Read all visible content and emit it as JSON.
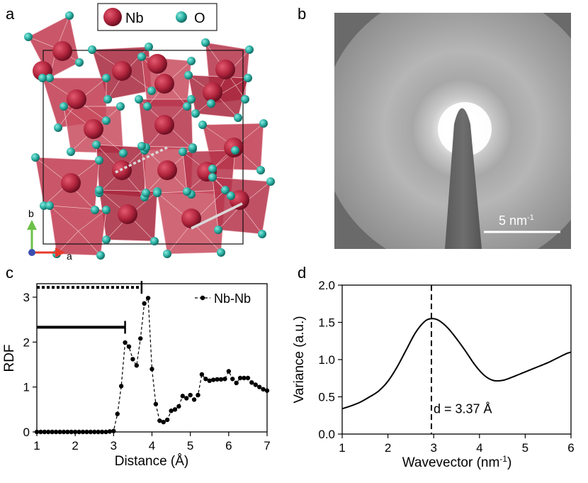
{
  "panels": {
    "a": {
      "letter": "a",
      "legend": [
        {
          "label": "Nb",
          "color": "#b3263e"
        },
        {
          "label": "O",
          "color": "#2fb5a8"
        }
      ],
      "axes": {
        "b_label": "b",
        "a_label": "a",
        "b_color": "#6cc04a",
        "a_color": "#e8392b",
        "origin_color": "#3b4fb0"
      }
    },
    "b": {
      "letter": "b",
      "scalebar_label": "5 nm",
      "scalebar_sup": "-1"
    }
  },
  "chart_data": [
    {
      "panel": "c",
      "letter": "c",
      "type": "line",
      "xlabel": "Distance (Å)",
      "ylabel": "RDF",
      "xlim": [
        1,
        7
      ],
      "ylim": [
        0,
        3.3
      ],
      "xticks": [
        "1",
        "2",
        "3",
        "4",
        "5",
        "6",
        "7"
      ],
      "yticks": [
        "0",
        "1",
        "2",
        "3"
      ],
      "grid": false,
      "legend_position": "top-right",
      "series": [
        {
          "name": "Nb-Nb",
          "style": "dashed-with-dots",
          "x": [
            1.0,
            1.1,
            1.2,
            1.3,
            1.4,
            1.5,
            1.6,
            1.7,
            1.8,
            1.9,
            2.0,
            2.1,
            2.2,
            2.3,
            2.4,
            2.5,
            2.6,
            2.7,
            2.8,
            2.9,
            3.0,
            3.1,
            3.2,
            3.3,
            3.4,
            3.5,
            3.6,
            3.7,
            3.8,
            3.9,
            4.0,
            4.1,
            4.2,
            4.3,
            4.4,
            4.5,
            4.6,
            4.7,
            4.8,
            4.9,
            5.0,
            5.1,
            5.2,
            5.3,
            5.4,
            5.5,
            5.6,
            5.7,
            5.8,
            5.9,
            6.0,
            6.1,
            6.2,
            6.3,
            6.4,
            6.5,
            6.6,
            6.7,
            6.8,
            6.9,
            7.0
          ],
          "y": [
            0,
            0,
            0,
            0,
            0,
            0,
            0,
            0,
            0,
            0,
            0,
            0,
            0,
            0,
            0,
            0,
            0,
            0,
            0,
            0.01,
            0.02,
            0.4,
            1.02,
            1.99,
            1.9,
            1.62,
            1.48,
            2.08,
            2.86,
            2.98,
            1.4,
            0.62,
            0.25,
            0.22,
            0.27,
            0.47,
            0.5,
            0.57,
            0.8,
            0.75,
            0.82,
            0.72,
            0.82,
            1.28,
            1.18,
            1.14,
            1.16,
            1.17,
            1.17,
            1.18,
            1.35,
            1.18,
            1.09,
            1.2,
            1.2,
            1.2,
            1.1,
            1.05,
            1.0,
            0.95,
            0.92
          ]
        }
      ],
      "annotations": [
        {
          "type": "hbar",
          "style": "dotted",
          "x_start": 1.0,
          "x_end": 3.73,
          "y": 3.22
        },
        {
          "type": "hbar",
          "style": "solid",
          "x_start": 1.0,
          "x_end": 3.3,
          "y": 2.33
        }
      ]
    },
    {
      "panel": "d",
      "letter": "d",
      "type": "line",
      "xlabel": "Wavevector (nm",
      "xlabel_sup": "-1",
      "xlabel_end": ")",
      "ylabel": "Variance (a.u.)",
      "xlim": [
        1,
        6
      ],
      "ylim": [
        0,
        2.0
      ],
      "xticks": [
        "1",
        "2",
        "3",
        "4",
        "5",
        "6"
      ],
      "yticks": [
        "0.0",
        "0.5",
        "1.0",
        "1.5",
        "2.0"
      ],
      "grid": false,
      "series": [
        {
          "x": [
            1.0,
            1.2,
            1.4,
            1.6,
            1.8,
            2.0,
            2.2,
            2.4,
            2.6,
            2.8,
            2.95,
            3.1,
            3.3,
            3.5,
            3.7,
            3.9,
            4.1,
            4.3,
            4.5,
            4.7,
            4.9,
            5.1,
            5.3,
            5.5,
            5.7,
            5.9,
            6.0
          ],
          "y": [
            0.34,
            0.38,
            0.43,
            0.5,
            0.58,
            0.71,
            0.9,
            1.13,
            1.36,
            1.51,
            1.55,
            1.53,
            1.43,
            1.28,
            1.11,
            0.93,
            0.79,
            0.72,
            0.72,
            0.76,
            0.81,
            0.86,
            0.91,
            0.96,
            1.02,
            1.08,
            1.1
          ]
        }
      ],
      "annotations": [
        {
          "type": "vline",
          "style": "dashed",
          "x": 2.95,
          "label": "d = 3.37 Å"
        }
      ]
    }
  ]
}
